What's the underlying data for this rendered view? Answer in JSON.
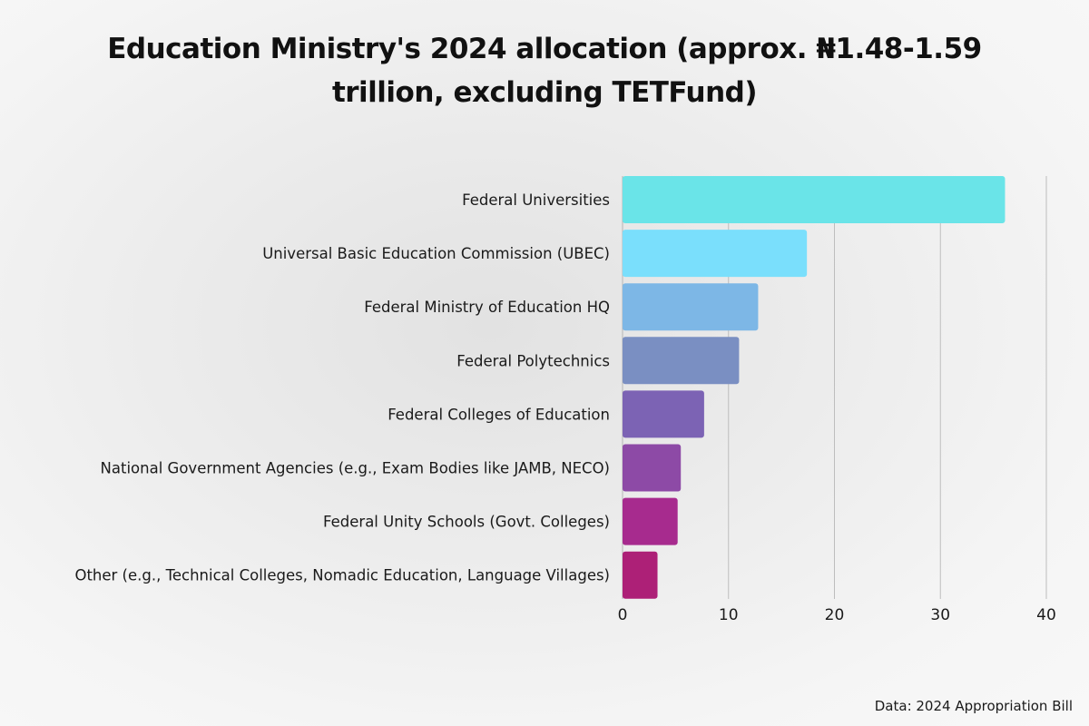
{
  "chart_data": {
    "type": "bar",
    "orientation": "horizontal",
    "title_lines": [
      "Education Ministry's 2024 allocation (approx. ₦1.48-1.59",
      "trillion, excluding TETFund)"
    ],
    "categories": [
      "Federal Universities",
      "Universal Basic Education Commission (UBEC)",
      "Federal Ministry of Education HQ",
      "Federal Polytechnics",
      "Federal Colleges of Education",
      "National Government Agencies (e.g., Exam Bodies like JAMB, NECO)",
      "Federal Unity Schools (Govt. Colleges)",
      "Other (e.g., Technical Colleges, Nomadic Education, Language Villages)"
    ],
    "values": [
      36.1,
      17.4,
      12.8,
      11.0,
      7.7,
      5.5,
      5.2,
      3.3
    ],
    "colors": [
      "#6ae4e8",
      "#7adffc",
      "#7db7e6",
      "#7a8fc2",
      "#7c63b4",
      "#8d4aa6",
      "#a72b8e",
      "#ad2077"
    ],
    "xlim": [
      0,
      40
    ],
    "xticks": [
      "0",
      "10",
      "20",
      "30",
      "40"
    ],
    "xtick_values": [
      0,
      10,
      20,
      30,
      40
    ],
    "grid": true,
    "xlabel": "",
    "ylabel": "",
    "source": "Data: 2024 Appropriation Bill"
  }
}
